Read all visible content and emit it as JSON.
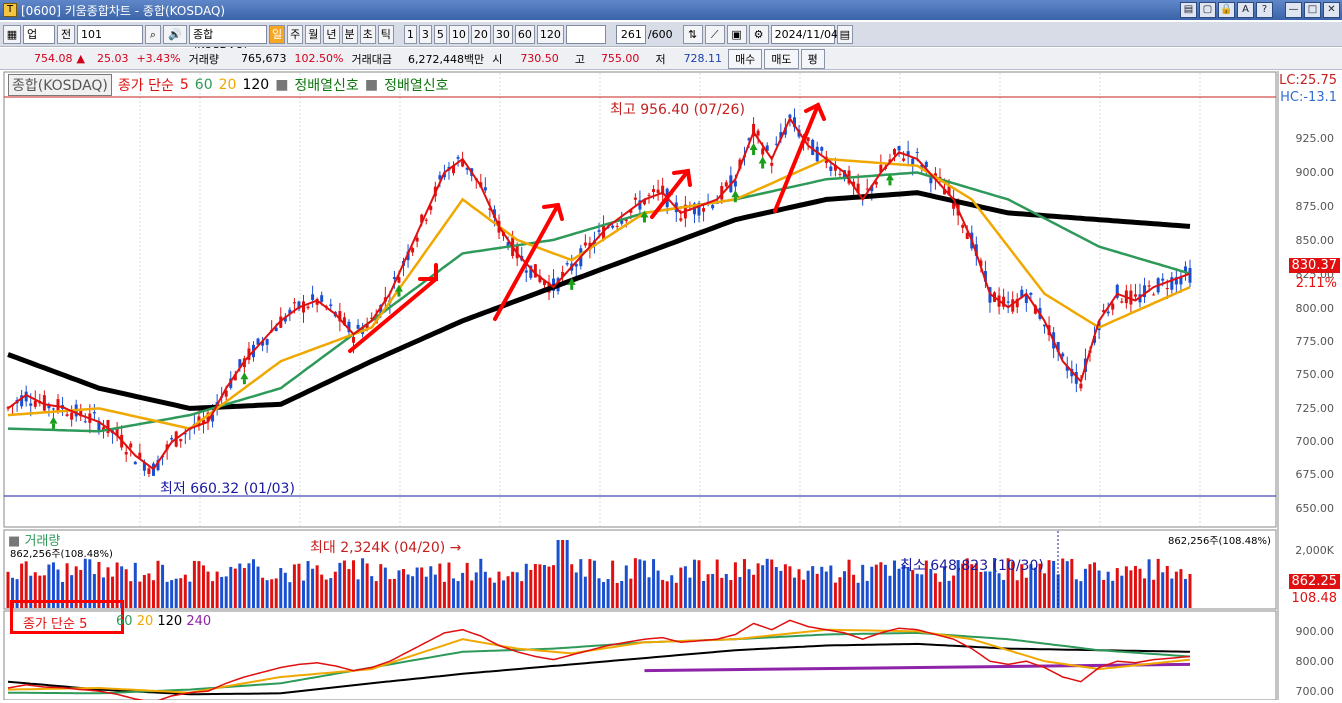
{
  "window": {
    "title": "[0600] 키움종합차트 - 종합(KOSDAQ)",
    "controls": [
      "▤",
      "▢",
      "🔒",
      "A",
      "?",
      "—",
      "□",
      "✕"
    ]
  },
  "toolbar": {
    "market": "업",
    "prev_label": "전",
    "code": "101",
    "name": "종합(KOSDAQ)",
    "periods": [
      "일",
      "주",
      "월",
      "년",
      "분",
      "초",
      "틱"
    ],
    "active_period": "일",
    "intervals": [
      "1",
      "3",
      "5",
      "10",
      "20",
      "30",
      "60",
      "120"
    ],
    "count": "261",
    "count_max": "/600",
    "date": "2024/11/04"
  },
  "quote": {
    "price": "754.08",
    "arrow": "▲",
    "change": "25.03",
    "pct": "+3.43%",
    "volume_label": "거래량",
    "volume": "765,673",
    "vol_pct": "102.50%",
    "amount_label": "거래대금",
    "amount": "6,272,448백만",
    "open_label": "시",
    "open": "730.50",
    "high_label": "고",
    "high": "755.00",
    "low_label": "저",
    "low": "728.11",
    "buy_label": "매수",
    "sell_label": "매도",
    "eval_label": "평"
  },
  "legend": {
    "box": "종합(KOSDAQ)",
    "ma_title": "종가 단순",
    "ma": [
      "5",
      "60",
      "20",
      "120"
    ],
    "signal1": "정배열신호",
    "signal2": "정배열신호"
  },
  "colors": {
    "ma5": "#e01010",
    "ma20": "#f0a800",
    "ma60": "#2e9a5a",
    "ma120": "#000000",
    "ma240": "#8e24aa",
    "up": "#e01010",
    "down": "#1a4fd0"
  },
  "annotations": {
    "high": "최고 956.40 (07/26)",
    "low": "최저 660.32 (01/03)",
    "vol_max": "최대 2,324K (04/20) →",
    "vol_min": "최소 648,823 (10/30)"
  },
  "price_axis": [
    "925.00",
    "900.00",
    "875.00",
    "850.00",
    "825.00",
    "800.00",
    "775.00",
    "750.00",
    "725.00",
    "700.00",
    "675.00",
    "650.00"
  ],
  "right_tags": {
    "lc": "LC:25.75",
    "hc": "HC:-13.1",
    "last": "830.37",
    "pct": "2.11%"
  },
  "volume_panel": {
    "title": "거래량",
    "left_value": "862,256주(108.48%)",
    "right_value": "862,256주(108.48%)",
    "axis": "2,000K",
    "tag1": "862.25",
    "tag2": "108.48"
  },
  "ma_panel": {
    "title": "종가 단순",
    "ma": [
      "5",
      "60",
      "20",
      "120",
      "240"
    ],
    "axis": [
      "900.00",
      "800.00",
      "700.00"
    ]
  },
  "chart_data": {
    "type": "candlestick",
    "x_range": [
      "2023-11",
      "2024-11-04"
    ],
    "ylim": [
      640,
      960
    ],
    "ma5_points": [
      [
        0,
        725
      ],
      [
        2,
        735
      ],
      [
        4,
        728
      ],
      [
        6,
        726
      ],
      [
        8,
        720
      ],
      [
        10,
        715
      ],
      [
        12,
        705
      ],
      [
        14,
        690
      ],
      [
        16,
        680
      ],
      [
        18,
        700
      ],
      [
        20,
        710
      ],
      [
        22,
        715
      ],
      [
        24,
        740
      ],
      [
        26,
        760
      ],
      [
        28,
        775
      ],
      [
        30,
        790
      ],
      [
        32,
        800
      ],
      [
        34,
        805
      ],
      [
        36,
        795
      ],
      [
        38,
        780
      ],
      [
        40,
        790
      ],
      [
        42,
        810
      ],
      [
        44,
        840
      ],
      [
        46,
        870
      ],
      [
        48,
        900
      ],
      [
        50,
        910
      ],
      [
        52,
        890
      ],
      [
        54,
        860
      ],
      [
        56,
        840
      ],
      [
        58,
        825
      ],
      [
        60,
        815
      ],
      [
        62,
        830
      ],
      [
        64,
        845
      ],
      [
        66,
        860
      ],
      [
        68,
        870
      ],
      [
        70,
        880
      ],
      [
        72,
        885
      ],
      [
        74,
        870
      ],
      [
        76,
        875
      ],
      [
        78,
        880
      ],
      [
        80,
        895
      ],
      [
        82,
        930
      ],
      [
        84,
        910
      ],
      [
        86,
        940
      ],
      [
        88,
        920
      ],
      [
        90,
        910
      ],
      [
        92,
        900
      ],
      [
        94,
        880
      ],
      [
        96,
        900
      ],
      [
        98,
        915
      ],
      [
        100,
        910
      ],
      [
        102,
        895
      ],
      [
        104,
        880
      ],
      [
        106,
        850
      ],
      [
        108,
        810
      ],
      [
        110,
        800
      ],
      [
        112,
        810
      ],
      [
        114,
        790
      ],
      [
        116,
        760
      ],
      [
        118,
        745
      ],
      [
        120,
        790
      ],
      [
        122,
        810
      ],
      [
        124,
        805
      ],
      [
        126,
        815
      ],
      [
        128,
        820
      ],
      [
        130,
        825
      ]
    ],
    "ma20_points": [
      [
        0,
        720
      ],
      [
        10,
        725
      ],
      [
        20,
        710
      ],
      [
        30,
        760
      ],
      [
        40,
        785
      ],
      [
        50,
        880
      ],
      [
        56,
        850
      ],
      [
        62,
        835
      ],
      [
        70,
        870
      ],
      [
        80,
        880
      ],
      [
        90,
        910
      ],
      [
        100,
        905
      ],
      [
        106,
        880
      ],
      [
        114,
        810
      ],
      [
        120,
        785
      ],
      [
        130,
        815
      ]
    ],
    "ma60_points": [
      [
        0,
        710
      ],
      [
        10,
        708
      ],
      [
        20,
        720
      ],
      [
        30,
        740
      ],
      [
        40,
        790
      ],
      [
        50,
        840
      ],
      [
        60,
        850
      ],
      [
        70,
        870
      ],
      [
        80,
        880
      ],
      [
        90,
        895
      ],
      [
        100,
        900
      ],
      [
        110,
        880
      ],
      [
        120,
        845
      ],
      [
        130,
        825
      ]
    ],
    "ma120_points": [
      [
        0,
        765
      ],
      [
        10,
        740
      ],
      [
        20,
        725
      ],
      [
        30,
        728
      ],
      [
        40,
        760
      ],
      [
        50,
        790
      ],
      [
        60,
        815
      ],
      [
        70,
        840
      ],
      [
        80,
        865
      ],
      [
        90,
        880
      ],
      [
        100,
        885
      ],
      [
        110,
        870
      ],
      [
        120,
        865
      ],
      [
        130,
        860
      ]
    ]
  }
}
